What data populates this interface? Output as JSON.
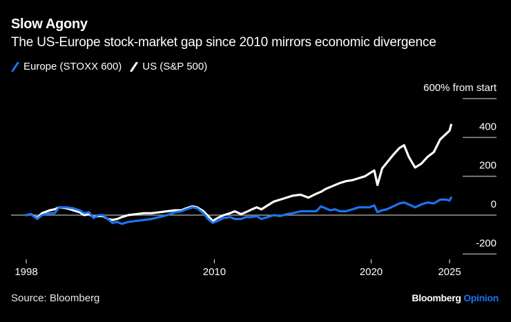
{
  "header": {
    "title": "Slow Agony",
    "subtitle": "The US-Europe stock-market gap since 2010 mirrors economic divergence"
  },
  "footer": {
    "source": "Source: Bloomberg",
    "brand_main": "Bloomberg",
    "brand_accent": "Opinion"
  },
  "colors": {
    "background": "#000000",
    "europe": "#1b74f0",
    "us": "#ffffff",
    "grid": "#9a9a9a",
    "text": "#ffffff"
  },
  "chart_data": {
    "type": "line",
    "title": "Slow Agony",
    "subtitle": "The US-Europe stock-market gap since 2010 mirrors economic divergence",
    "ylabel": "% from start",
    "y_unit_label": "600% from start",
    "ylim": [
      -200,
      600
    ],
    "yticks": [
      600,
      400,
      200,
      0,
      -200
    ],
    "ytick_labels": [
      "600% from start",
      "400",
      "200",
      "0",
      "-200"
    ],
    "xlim": [
      1998,
      2025.2
    ],
    "xticks": [
      1998,
      2010,
      2020,
      2025
    ],
    "xtick_labels": [
      "1998",
      "2010",
      "2020",
      "2025"
    ],
    "grid": true,
    "legend_position": "top-left",
    "series": [
      {
        "name": "Europe (STOXX 600)",
        "color": "#1b74f0",
        "points": [
          [
            1998.0,
            0
          ],
          [
            1998.3,
            5
          ],
          [
            1998.7,
            -20
          ],
          [
            1999.0,
            0
          ],
          [
            1999.5,
            10
          ],
          [
            1999.8,
            10
          ],
          [
            2000.1,
            40
          ],
          [
            2000.6,
            40
          ],
          [
            2001.0,
            35
          ],
          [
            2001.4,
            25
          ],
          [
            2001.7,
            10
          ],
          [
            2002.0,
            15
          ],
          [
            2002.3,
            -15
          ],
          [
            2002.6,
            0
          ],
          [
            2002.9,
            0
          ],
          [
            2003.2,
            -20
          ],
          [
            2003.5,
            -40
          ],
          [
            2003.8,
            -35
          ],
          [
            2004.1,
            -45
          ],
          [
            2004.5,
            -35
          ],
          [
            2005.0,
            -30
          ],
          [
            2005.5,
            -25
          ],
          [
            2006.0,
            -20
          ],
          [
            2006.5,
            -10
          ],
          [
            2007.0,
            0
          ],
          [
            2007.5,
            15
          ],
          [
            2007.9,
            20
          ],
          [
            2008.2,
            30
          ],
          [
            2008.6,
            40
          ],
          [
            2008.9,
            35
          ],
          [
            2009.3,
            10
          ],
          [
            2009.6,
            -20
          ],
          [
            2009.9,
            -40
          ],
          [
            2010.2,
            -30
          ],
          [
            2010.6,
            -15
          ],
          [
            2011.0,
            -10
          ],
          [
            2011.3,
            -20
          ],
          [
            2011.7,
            -20
          ],
          [
            2012.0,
            -10
          ],
          [
            2012.4,
            -10
          ],
          [
            2012.7,
            -5
          ],
          [
            2013.0,
            -20
          ],
          [
            2013.4,
            -10
          ],
          [
            2013.8,
            0
          ],
          [
            2014.2,
            -5
          ],
          [
            2014.6,
            5
          ],
          [
            2015.0,
            10
          ],
          [
            2015.5,
            20
          ],
          [
            2016.0,
            20
          ],
          [
            2016.5,
            20
          ],
          [
            2016.8,
            45
          ],
          [
            2017.1,
            35
          ],
          [
            2017.4,
            25
          ],
          [
            2017.7,
            30
          ],
          [
            2018.0,
            20
          ],
          [
            2018.4,
            20
          ],
          [
            2018.8,
            30
          ],
          [
            2019.2,
            40
          ],
          [
            2019.6,
            40
          ],
          [
            2019.9,
            40
          ],
          [
            2020.2,
            50
          ],
          [
            2020.4,
            15
          ],
          [
            2020.7,
            25
          ],
          [
            2021.0,
            30
          ],
          [
            2021.4,
            45
          ],
          [
            2021.8,
            60
          ],
          [
            2022.1,
            65
          ],
          [
            2022.4,
            55
          ],
          [
            2022.8,
            40
          ],
          [
            2023.2,
            55
          ],
          [
            2023.6,
            65
          ],
          [
            2024.0,
            60
          ],
          [
            2024.4,
            80
          ],
          [
            2024.8,
            80
          ],
          [
            2025.0,
            75
          ],
          [
            2025.1,
            90
          ]
        ]
      },
      {
        "name": "US (S&P 500)",
        "color": "#ffffff",
        "points": [
          [
            1998.0,
            0
          ],
          [
            1998.3,
            5
          ],
          [
            1998.7,
            -15
          ],
          [
            1999.0,
            10
          ],
          [
            1999.5,
            25
          ],
          [
            1999.8,
            30
          ],
          [
            2000.1,
            40
          ],
          [
            2000.6,
            35
          ],
          [
            2001.0,
            25
          ],
          [
            2001.4,
            15
          ],
          [
            2001.7,
            0
          ],
          [
            2002.0,
            5
          ],
          [
            2002.3,
            -10
          ],
          [
            2002.6,
            -5
          ],
          [
            2002.9,
            -5
          ],
          [
            2003.2,
            -20
          ],
          [
            2003.5,
            -25
          ],
          [
            2003.8,
            -20
          ],
          [
            2004.1,
            -10
          ],
          [
            2004.5,
            0
          ],
          [
            2005.0,
            5
          ],
          [
            2005.5,
            10
          ],
          [
            2006.0,
            10
          ],
          [
            2006.5,
            15
          ],
          [
            2007.0,
            20
          ],
          [
            2007.5,
            25
          ],
          [
            2007.9,
            25
          ],
          [
            2008.2,
            35
          ],
          [
            2008.6,
            45
          ],
          [
            2008.9,
            40
          ],
          [
            2009.3,
            20
          ],
          [
            2009.6,
            -5
          ],
          [
            2009.9,
            -30
          ],
          [
            2010.2,
            -15
          ],
          [
            2010.6,
            0
          ],
          [
            2011.0,
            10
          ],
          [
            2011.3,
            20
          ],
          [
            2011.7,
            5
          ],
          [
            2012.0,
            15
          ],
          [
            2012.4,
            30
          ],
          [
            2012.7,
            40
          ],
          [
            2013.0,
            30
          ],
          [
            2013.4,
            50
          ],
          [
            2013.8,
            70
          ],
          [
            2014.2,
            80
          ],
          [
            2014.6,
            90
          ],
          [
            2015.0,
            100
          ],
          [
            2015.5,
            105
          ],
          [
            2016.0,
            90
          ],
          [
            2016.5,
            110
          ],
          [
            2016.8,
            120
          ],
          [
            2017.1,
            135
          ],
          [
            2017.4,
            145
          ],
          [
            2017.7,
            155
          ],
          [
            2018.0,
            165
          ],
          [
            2018.4,
            175
          ],
          [
            2018.8,
            180
          ],
          [
            2019.2,
            190
          ],
          [
            2019.6,
            200
          ],
          [
            2019.9,
            215
          ],
          [
            2020.2,
            230
          ],
          [
            2020.4,
            155
          ],
          [
            2020.7,
            240
          ],
          [
            2021.0,
            270
          ],
          [
            2021.4,
            310
          ],
          [
            2021.8,
            345
          ],
          [
            2022.1,
            360
          ],
          [
            2022.4,
            300
          ],
          [
            2022.8,
            245
          ],
          [
            2023.2,
            265
          ],
          [
            2023.6,
            300
          ],
          [
            2024.0,
            325
          ],
          [
            2024.4,
            390
          ],
          [
            2024.8,
            420
          ],
          [
            2025.0,
            435
          ],
          [
            2025.1,
            465
          ]
        ]
      }
    ]
  }
}
